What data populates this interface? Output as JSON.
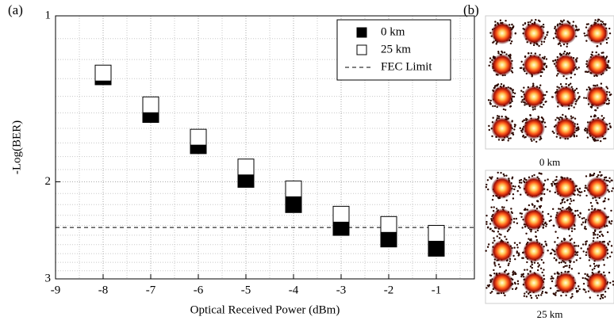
{
  "chart_data": {
    "type": "scatter",
    "panel_label": "(a)",
    "x_label": "Optical Received Power (dBm)",
    "y_label": "-Log(BER)",
    "xlim": [
      -9,
      -0.2
    ],
    "xticks": [
      -9,
      -8,
      -7,
      -6,
      -5,
      -4,
      -3,
      -2,
      -1
    ],
    "ylim": [
      1,
      3
    ],
    "yticks": [
      1,
      2,
      3
    ],
    "y_log": true,
    "y_inverted": true,
    "grid": true,
    "y_minor_gridlines": [
      1.1,
      1.2,
      1.3,
      1.4,
      1.5,
      1.6,
      1.7,
      1.8,
      1.9,
      2.1,
      2.2,
      2.3,
      2.4,
      2.5,
      2.6,
      2.7,
      2.8,
      2.9
    ],
    "x_minor_gridlines": [
      -8.5,
      -7.5,
      -6.5,
      -5.5,
      -4.5,
      -3.5,
      -2.5,
      -1.5,
      -0.5
    ],
    "legend": "upper right",
    "x": [
      -8,
      -7,
      -6,
      -5,
      -4,
      -3,
      -2,
      -1
    ],
    "series": [
      {
        "name": "0 km",
        "color": "#000000",
        "marker": "filled-square",
        "values": [
          1.29,
          1.51,
          1.72,
          1.98,
          2.2,
          2.42,
          2.54,
          2.64
        ]
      },
      {
        "name": "25 km",
        "color": "#000000",
        "marker": "open-square",
        "values": [
          1.27,
          1.45,
          1.66,
          1.88,
          2.06,
          2.29,
          2.39,
          2.48
        ]
      }
    ],
    "reference_line": {
      "name": "FEC Limit",
      "value": 2.42,
      "color": "#000000"
    }
  },
  "panel_b": {
    "label": "(b)",
    "captions": [
      "0 km",
      "25 km"
    ]
  }
}
